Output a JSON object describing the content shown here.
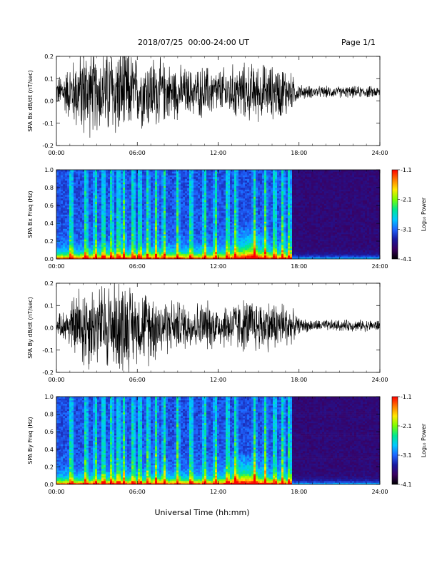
{
  "header": {
    "title": "2018/07/25  00:00-24:00 UT",
    "page": "Page 1/1"
  },
  "xlabel": "Universal Time (hh:mm)",
  "colors": {
    "trace": "#000000",
    "spectrogram_palette": [
      "#000000",
      "#3a0060",
      "#1a1aa0",
      "#1e64ff",
      "#00c8ff",
      "#00e890",
      "#7aff00",
      "#ffe800",
      "#ff7a00",
      "#ff0000"
    ]
  },
  "chart_data": [
    {
      "type": "line",
      "ylabel": "SPA Bx dB/dt (nT/sec)",
      "xlim": [
        0,
        24
      ],
      "ylim": [
        -0.2,
        0.2
      ],
      "x_ticks": [
        "00:00",
        "06:00",
        "12:00",
        "18:00",
        "24:00"
      ],
      "y_ticks": [
        "-0.2",
        "-0.1",
        "0.0",
        "0.1",
        "0.2"
      ],
      "baseline": 0.04,
      "series": [
        {
          "x": [
            0,
            1,
            2,
            3,
            4,
            5,
            6,
            7,
            8,
            9,
            10,
            11,
            12,
            13,
            14,
            15,
            16,
            17,
            18,
            19,
            20,
            21,
            22,
            23,
            24
          ],
          "amplitude": [
            0.07,
            0.15,
            0.25,
            0.2,
            0.25,
            0.25,
            0.18,
            0.2,
            0.16,
            0.14,
            0.12,
            0.14,
            0.12,
            0.14,
            0.15,
            0.15,
            0.14,
            0.14,
            0.04,
            0.03,
            0.03,
            0.03,
            0.03,
            0.03,
            0.03
          ]
        }
      ]
    },
    {
      "type": "heatmap",
      "ylabel": "SPA Bx Freq (Hz)",
      "xlim": [
        0,
        24
      ],
      "ylim": [
        0,
        1.0
      ],
      "x_ticks": [
        "00:00",
        "06:00",
        "12:00",
        "18:00",
        "24:00"
      ],
      "y_ticks": [
        "0.0",
        "0.2",
        "0.4",
        "0.6",
        "0.8",
        "1.0"
      ],
      "colorbar": {
        "label": "Log₁₀ Power",
        "range": [
          -4.1,
          -1.1
        ],
        "ticks": [
          "-1.1",
          "-2.1",
          "-3.1",
          "-4.1"
        ]
      },
      "bright_spikes_hours": [
        1.1,
        2.2,
        2.9,
        3.5,
        4.1,
        4.6,
        5.0,
        5.7,
        6.2,
        6.8,
        7.4,
        8.0,
        9.0,
        10.0,
        11.0,
        11.8,
        12.7,
        13.3,
        14.7,
        15.5,
        16.2,
        16.8,
        17.3
      ],
      "hump": {
        "center_hours": 14.3,
        "width_hours": 1.0,
        "peak_hz": 0.4
      },
      "quiet_after_hours": 17.5
    },
    {
      "type": "line",
      "ylabel": "SPA By dB/dt (nT/sec)",
      "xlim": [
        0,
        24
      ],
      "ylim": [
        -0.2,
        0.2
      ],
      "x_ticks": [
        "00:00",
        "06:00",
        "12:00",
        "18:00",
        "24:00"
      ],
      "y_ticks": [
        "-0.2",
        "-0.1",
        "0.0",
        "0.1",
        "0.2"
      ],
      "baseline": 0.01,
      "series": [
        {
          "x": [
            0,
            1,
            2,
            3,
            4,
            5,
            6,
            7,
            8,
            9,
            10,
            11,
            12,
            13,
            14,
            15,
            16,
            17,
            18,
            19,
            20,
            21,
            22,
            23,
            24
          ],
          "amplitude": [
            0.04,
            0.12,
            0.25,
            0.2,
            0.25,
            0.25,
            0.18,
            0.2,
            0.15,
            0.13,
            0.12,
            0.13,
            0.11,
            0.13,
            0.14,
            0.14,
            0.13,
            0.13,
            0.04,
            0.03,
            0.03,
            0.03,
            0.03,
            0.03,
            0.03
          ]
        }
      ]
    },
    {
      "type": "heatmap",
      "ylabel": "SPA By Freq (Hz)",
      "xlim": [
        0,
        24
      ],
      "ylim": [
        0,
        1.0
      ],
      "x_ticks": [
        "00:00",
        "06:00",
        "12:00",
        "18:00",
        "24:00"
      ],
      "y_ticks": [
        "0.0",
        "0.2",
        "0.4",
        "0.6",
        "0.8",
        "1.0"
      ],
      "colorbar": {
        "label": "Log₁₀ Power",
        "range": [
          -4.1,
          -1.1
        ],
        "ticks": [
          "-1.1",
          "-2.1",
          "-3.1",
          "-4.1"
        ]
      },
      "bright_spikes_hours": [
        1.1,
        2.2,
        2.9,
        3.5,
        4.1,
        4.6,
        5.0,
        5.7,
        6.2,
        6.8,
        7.4,
        8.0,
        9.0,
        10.0,
        11.0,
        11.8,
        12.7,
        13.3,
        14.7,
        15.5,
        16.2,
        16.8,
        17.3
      ],
      "hump": {
        "center_hours": 14.0,
        "width_hours": 1.2,
        "peak_hz": 0.38
      },
      "quiet_after_hours": 17.5
    }
  ]
}
